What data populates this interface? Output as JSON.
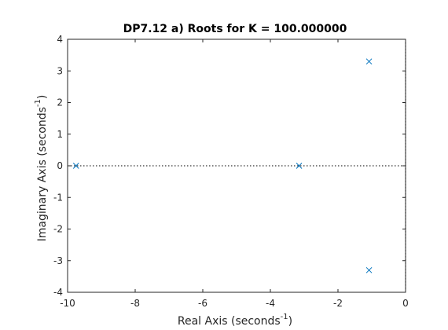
{
  "chart_data": {
    "type": "scatter",
    "title": "DP7.12 a) Roots for K = 100.000000",
    "xlabel": {
      "text": "Real Axis (seconds",
      "superscript": "-1",
      "suffix": ")"
    },
    "ylabel": {
      "text": "Imaginary Axis (seconds",
      "superscript": "-1",
      "suffix": ")"
    },
    "xlim": [
      -10,
      0
    ],
    "ylim": [
      -4,
      4
    ],
    "xticks": [
      -10,
      -8,
      -6,
      -4,
      -2,
      0
    ],
    "yticks": [
      -4,
      -3,
      -2,
      -1,
      0,
      1,
      2,
      3,
      4
    ],
    "xtick_labels": [
      "-10",
      "-8",
      "-6",
      "-4",
      "-2",
      "0"
    ],
    "ytick_labels": [
      "-4",
      "-3",
      "-2",
      "-1",
      "0",
      "1",
      "2",
      "3",
      "4"
    ],
    "grid": false,
    "series": [
      {
        "marker": "x",
        "color": "#0072BD",
        "points": [
          {
            "x": -9.75,
            "y": 0
          },
          {
            "x": -3.15,
            "y": 0
          },
          {
            "x": -1.08,
            "y": 3.3
          },
          {
            "x": -1.08,
            "y": -3.3
          }
        ]
      }
    ],
    "reference_lines": [
      {
        "orientation": "horizontal",
        "y": 0,
        "style": "dotted",
        "color": "#000000"
      },
      {
        "orientation": "vertical",
        "x": 0,
        "style": "dotted",
        "color": "#000000"
      }
    ]
  }
}
